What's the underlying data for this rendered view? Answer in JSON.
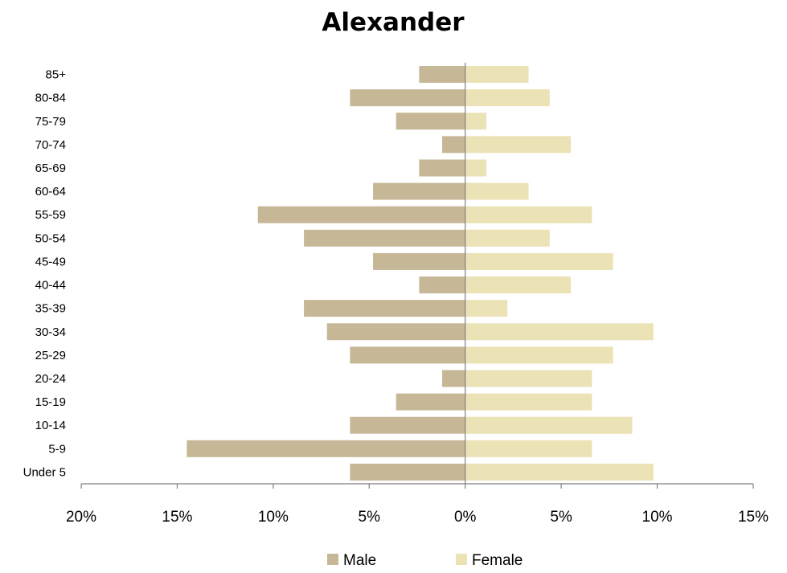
{
  "chart_data": {
    "type": "bar",
    "orientation": "horizontal",
    "title": "Alexander",
    "xlabel": "",
    "ylabel": "",
    "categories": [
      "85+",
      "80-84",
      "75-79",
      "70-74",
      "65-69",
      "60-64",
      "55-59",
      "50-54",
      "45-49",
      "40-44",
      "35-39",
      "30-34",
      "25-29",
      "20-24",
      "15-19",
      "10-14",
      "5-9",
      "Under 5"
    ],
    "series": [
      {
        "name": "Male",
        "color": "#c6b896",
        "values": [
          2.4,
          6.0,
          3.6,
          1.2,
          2.4,
          4.8,
          10.8,
          8.4,
          4.8,
          2.4,
          8.4,
          7.2,
          6.0,
          1.2,
          3.6,
          6.0,
          14.5,
          6.0
        ]
      },
      {
        "name": "Female",
        "color": "#ebe2b6",
        "values": [
          3.3,
          4.4,
          1.1,
          5.5,
          1.1,
          3.3,
          6.6,
          4.4,
          7.7,
          5.5,
          2.2,
          9.8,
          7.7,
          6.6,
          6.6,
          8.7,
          6.6,
          9.8
        ]
      }
    ],
    "xlim": [
      -20,
      15
    ],
    "xticks": [
      -20,
      -15,
      -10,
      -5,
      0,
      5,
      10,
      15
    ],
    "xtick_labels": [
      "20%",
      "15%",
      "10%",
      "5%",
      "0%",
      "5%",
      "10%",
      "15%"
    ],
    "grid": false,
    "legend_position": "bottom"
  }
}
